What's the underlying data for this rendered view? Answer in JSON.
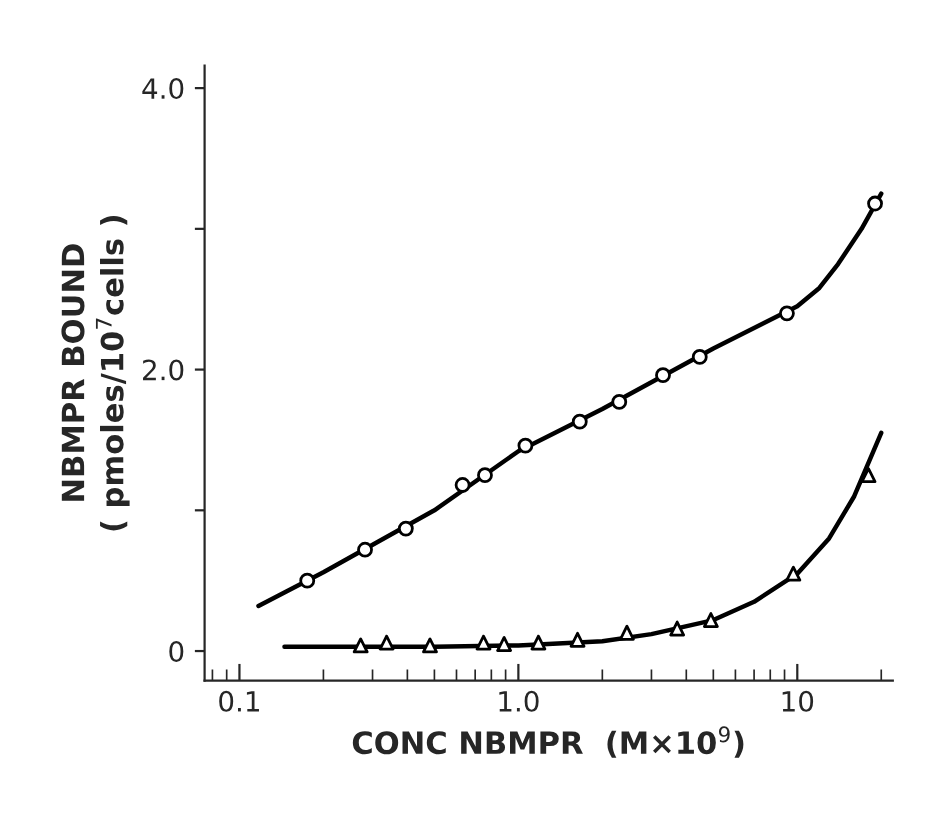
{
  "chart_data": {
    "type": "scatter",
    "xlabel": "CONC NBMPR  (M×10$^{9}$)",
    "ylabel": "NBMPR BOUND\n( pmoles/10$^{7}$cells )",
    "log": "x",
    "xlim": [
      0.075,
      22
    ],
    "xticks": [
      {
        "value": 0.1,
        "label": "0.1"
      },
      {
        "value": 1,
        "label": "1.0"
      },
      10
    ],
    "ylim": [
      -0.21,
      4.16
    ],
    "yticks": [
      0,
      {
        "value": 1,
        "label": null
      },
      {
        "value": 2,
        "label": "2.0"
      },
      {
        "value": 3,
        "label": null
      },
      {
        "value": 4,
        "label": "4.0"
      }
    ],
    "grid": false,
    "legend": false,
    "series": [
      {
        "marker": "circle",
        "color": "#000000",
        "x": [
          0.175,
          0.282,
          0.395,
          0.631,
          0.759,
          1.06,
          1.66,
          2.3,
          3.3,
          4.47,
          9.18,
          19
        ],
        "values": [
          0.5,
          0.72,
          0.87,
          1.18,
          1.25,
          1.46,
          1.63,
          1.77,
          1.96,
          2.09,
          2.4,
          3.18
        ]
      },
      {
        "marker": "triangle",
        "color": "#000000",
        "x": [
          0.272,
          0.337,
          0.482,
          0.75,
          0.889,
          1.18,
          1.63,
          2.45,
          3.71,
          4.9,
          9.68,
          18
        ],
        "values": [
          0.04,
          0.06,
          0.04,
          0.06,
          0.05,
          0.06,
          0.08,
          0.13,
          0.16,
          0.22,
          0.55,
          1.25
        ]
      },
      {
        "type": "line",
        "marker": "none",
        "color": "#000000",
        "x": [
          0.117,
          0.2,
          0.5,
          1,
          2,
          5,
          10,
          12,
          14,
          17,
          20
        ],
        "values": [
          0.32,
          0.56,
          1.0,
          1.42,
          1.72,
          2.15,
          2.45,
          2.58,
          2.75,
          3.0,
          3.25
        ]
      },
      {
        "type": "line",
        "marker": "none",
        "color": "#000000",
        "x": [
          0.145,
          0.5,
          1,
          2,
          3,
          5,
          7,
          10,
          13,
          16,
          20
        ],
        "values": [
          0.03,
          0.03,
          0.04,
          0.07,
          0.12,
          0.22,
          0.35,
          0.55,
          0.8,
          1.1,
          1.55
        ]
      }
    ]
  }
}
